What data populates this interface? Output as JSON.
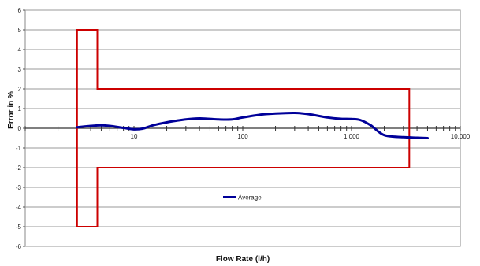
{
  "chart_data": {
    "type": "line",
    "xlabel": "Flow Rate (l/h)",
    "ylabel": "Error in %",
    "xscale": "log",
    "xlim": [
      1,
      10000
    ],
    "ylim": [
      -6,
      6
    ],
    "x_tick_values": [
      10,
      100,
      1000,
      10000
    ],
    "x_tick_labels": [
      "10",
      "100",
      "1.000",
      "10.000"
    ],
    "y_ticks": [
      -6,
      -5,
      -4,
      -3,
      -2,
      -1,
      0,
      1,
      2,
      3,
      4,
      5,
      6
    ],
    "grid": "horizontal",
    "legend": "center",
    "series": [
      {
        "name": "Average",
        "color": "#000099",
        "x": [
          3,
          4,
          5,
          6,
          8,
          10,
          12,
          15,
          20,
          30,
          40,
          60,
          80,
          100,
          150,
          200,
          300,
          400,
          600,
          800,
          1000,
          1200,
          1500,
          2000,
          3000,
          4000,
          5000
        ],
        "y": [
          0.05,
          0.12,
          0.15,
          0.12,
          0.02,
          -0.05,
          -0.02,
          0.15,
          0.3,
          0.45,
          0.5,
          0.45,
          0.45,
          0.55,
          0.7,
          0.75,
          0.78,
          0.72,
          0.55,
          0.48,
          0.47,
          0.42,
          0.15,
          -0.35,
          -0.45,
          -0.48,
          -0.5
        ]
      }
    ],
    "limit_envelope": {
      "color": "#cc0000",
      "x": [
        3,
        3,
        4.6,
        4.6,
        3400,
        3400,
        4.6,
        4.6,
        3,
        3
      ],
      "y": [
        0,
        5,
        5,
        2,
        2,
        -2,
        -2,
        -5,
        -5,
        0
      ]
    }
  }
}
